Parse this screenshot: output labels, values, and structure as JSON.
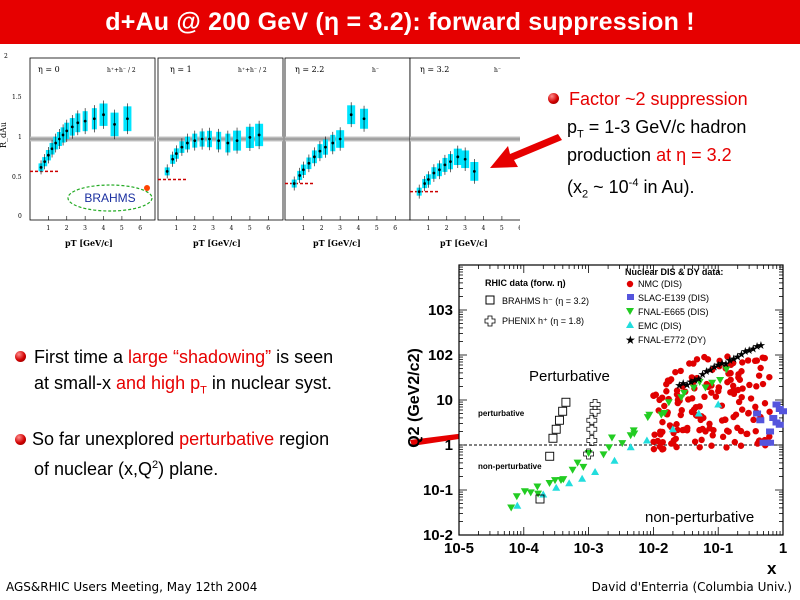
{
  "title": "d+Au @ 200 GeV (η = 3.2): forward suppression !",
  "top_panels": {
    "panels": [
      {
        "label": "η = 0",
        "species": "h⁺+h⁻ / 2"
      },
      {
        "label": "η = 1",
        "species": "h⁺+h⁻ / 2"
      },
      {
        "label": "η = 2.2",
        "species": "h⁻"
      },
      {
        "label": "η = 3.2",
        "species": "h⁻"
      }
    ],
    "ylabel": "R_dAu",
    "xlabel": "pT [GeV/c]",
    "yticks": [
      "0",
      "0.5",
      "1",
      "1.5",
      "2"
    ],
    "xticks": [
      "1",
      "2",
      "3",
      "4",
      "5",
      "6"
    ],
    "brahms_label": "BRAHMS"
  },
  "right_text": {
    "bullet1_head": "Factor ~2 suppression",
    "line1_a": "p",
    "line1_sub": "T",
    "line1_b": " = 1-3 GeV/c hadron",
    "line2_a": "production ",
    "line2_red": "at η = 3.2",
    "line3_a": "(x",
    "line3_sub": "2",
    "line3_b": " ~ 10",
    "line3_sup": "-4",
    "line3_c": " in Au)."
  },
  "left_text": {
    "b1_l1_a": "First time a ",
    "b1_l1_red": "large “shadowing”",
    "b1_l1_b": " is seen",
    "b1_l2_a": "at small-x ",
    "b1_l2_red": "and high p",
    "b1_l2_sub": "T",
    "b1_l2_b": " in nuclear syst.",
    "b2_l1_a": " So far unexplored ",
    "b2_l1_red": "perturbative",
    "b2_l1_b": " region",
    "b2_l2_a": "of nuclear (x,Q",
    "b2_l2_sup": "2",
    "b2_l2_b": ") plane."
  },
  "chart_data": {
    "type": "scatter",
    "title": "",
    "xlabel": "x",
    "ylabel": "Q2 (GeV2/c2)",
    "xscale": "log",
    "yscale": "log",
    "xlim": [
      1e-05,
      1
    ],
    "ylim": [
      0.01,
      10000
    ],
    "xticklabels": [
      "10-5",
      "10-4",
      "10-3",
      "10-2",
      "10-1",
      "1"
    ],
    "yticklabels": [
      "10-2",
      "10-1",
      "1",
      "10",
      "102",
      "103"
    ],
    "legend_left_title": "RHIC data (forw. η)",
    "legend_left": [
      "BRAHMS h⁻ (η = 3.2)",
      "PHENIX h⁺ (η = 1.8)"
    ],
    "legend_right_title": "Nuclear DIS & DY data:",
    "legend_right": [
      "NMC (DIS)",
      "SLAC-E139 (DIS)",
      "FNAL-E665 (DIS)",
      "EMC (DIS)",
      "FNAL-E772 (DY)"
    ],
    "annotations": [
      "Perturbative",
      "perturbative",
      "non-perturbative",
      "non-perturbative"
    ],
    "boundary_Q2": 1
  },
  "footer_left": "AGS&RHIC Users Meeting, May 12th 2004",
  "footer_right": "David d'Enterria (Columbia Univ.)"
}
